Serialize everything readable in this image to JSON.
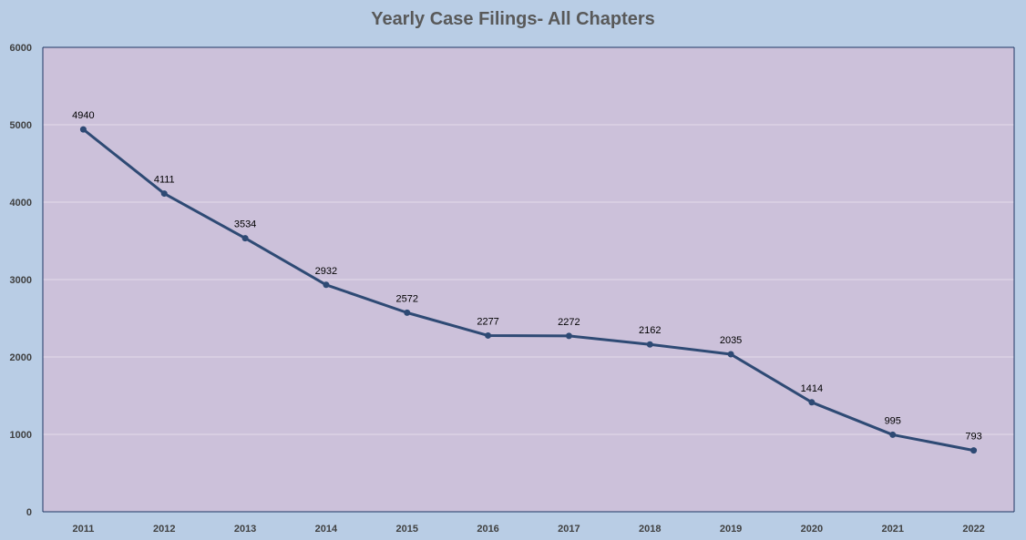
{
  "chart_data": {
    "type": "line",
    "title": "Yearly Case Filings- All Chapters",
    "xlabel": "",
    "ylabel": "",
    "categories": [
      "2011",
      "2012",
      "2013",
      "2014",
      "2015",
      "2016",
      "2017",
      "2018",
      "2019",
      "2020",
      "2021",
      "2022"
    ],
    "series": [
      {
        "values": [
          4940,
          4111,
          3534,
          2932,
          2572,
          2277,
          2272,
          2162,
          2035,
          1414,
          995,
          793
        ]
      }
    ],
    "data_labels": [
      "4940",
      "4111",
      "3534",
      "2932",
      "2572",
      "2277",
      "2272",
      "2162",
      "2035",
      "1414",
      "995",
      "793"
    ],
    "ylim": [
      0,
      6000
    ],
    "y_ticks": [
      "0",
      "1000",
      "2000",
      "3000",
      "4000",
      "5000",
      "6000"
    ],
    "grid": true,
    "legend": "none"
  },
  "colors": {
    "page_background": "#b9cde5",
    "plot_background": "#ccc1da",
    "series_line": "#2e4a74",
    "gridline": "#e3dceb",
    "axis": "#1f3864",
    "title": "#595959"
  }
}
